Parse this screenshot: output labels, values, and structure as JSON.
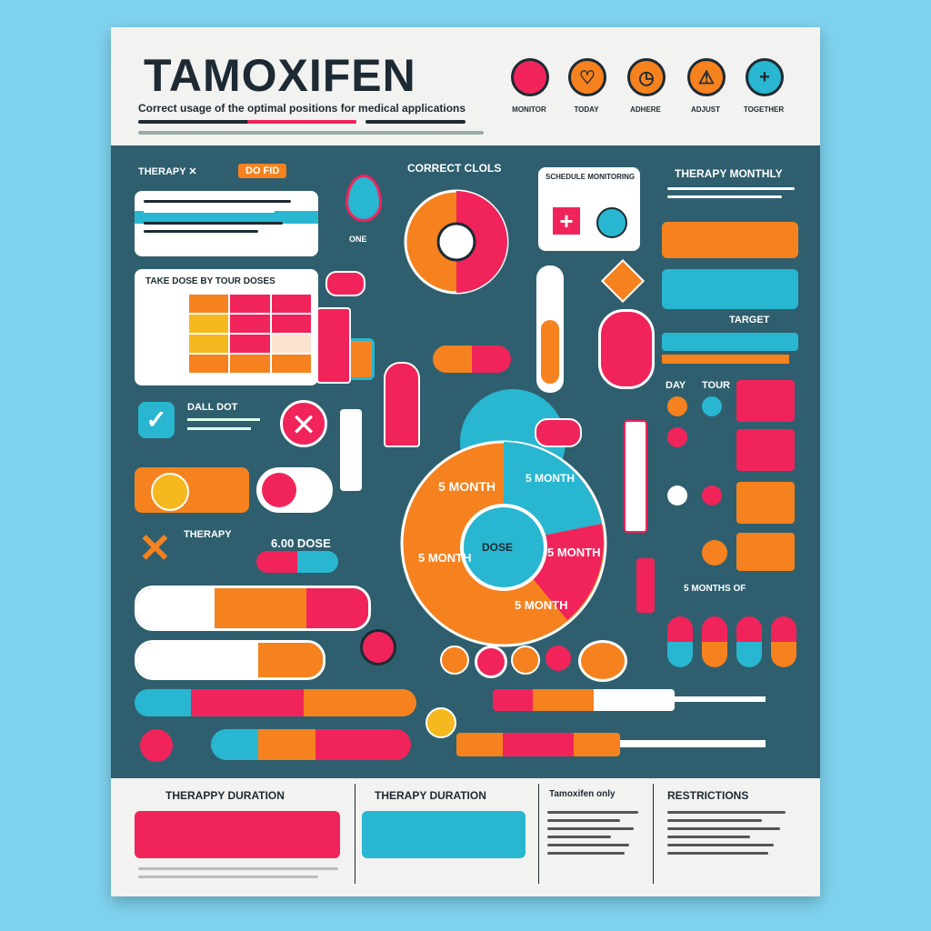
{
  "header": {
    "title": "TAMOXIFEN",
    "subtitle": "Correct usage of the optimal positions for medical applications",
    "icons": [
      {
        "name": "dropper-icon",
        "label": "MONITOR",
        "color": "#f0245a"
      },
      {
        "name": "heart-icon",
        "label": "TODAY",
        "color": "#f5821f"
      },
      {
        "name": "clock-icon",
        "label": "ADHERE",
        "color": "#f5821f"
      },
      {
        "name": "warning-icon",
        "label": "ADJUST",
        "color": "#f5821f"
      },
      {
        "name": "plus-icon",
        "label": "TOGETHER",
        "color": "#28b6d0"
      }
    ]
  },
  "left": {
    "therapy_label": "THERAPY ✕",
    "therapy_badge": "DO FID",
    "table_title": "TAKE DOSE BY TOUR DOSES",
    "check_label": "DALL DOT",
    "x_label": "THERAPY",
    "dose_label": "6.00 DOSE"
  },
  "center": {
    "top_title": "CORRECT CLOLS",
    "small_label": "ONE",
    "pie_labels": [
      "5 MONTH",
      "5 MONTH",
      "5 MONTH",
      "5 MONTH",
      "5 MONTH"
    ],
    "pie_center": "DOSE"
  },
  "right": {
    "bubble_title": "SCHEDULE MONITORING",
    "title": "THERAPY MONTHLY",
    "target_label": "TARGET",
    "side_a": "DAY",
    "side_b": "TOUR",
    "months_label": "5 MONTHS OF"
  },
  "footer": {
    "col1_title": "THERAPPY DURATION",
    "col2_title": "THERAPY DURATION",
    "col3_title": "Tamoxifen only",
    "col4_title": "RESTRICTIONS"
  },
  "colors": {
    "navy": "#2f5f6e",
    "pink": "#f0245a",
    "orange": "#f5821f",
    "cyan": "#28b6d0",
    "yellow": "#f5b81f"
  }
}
